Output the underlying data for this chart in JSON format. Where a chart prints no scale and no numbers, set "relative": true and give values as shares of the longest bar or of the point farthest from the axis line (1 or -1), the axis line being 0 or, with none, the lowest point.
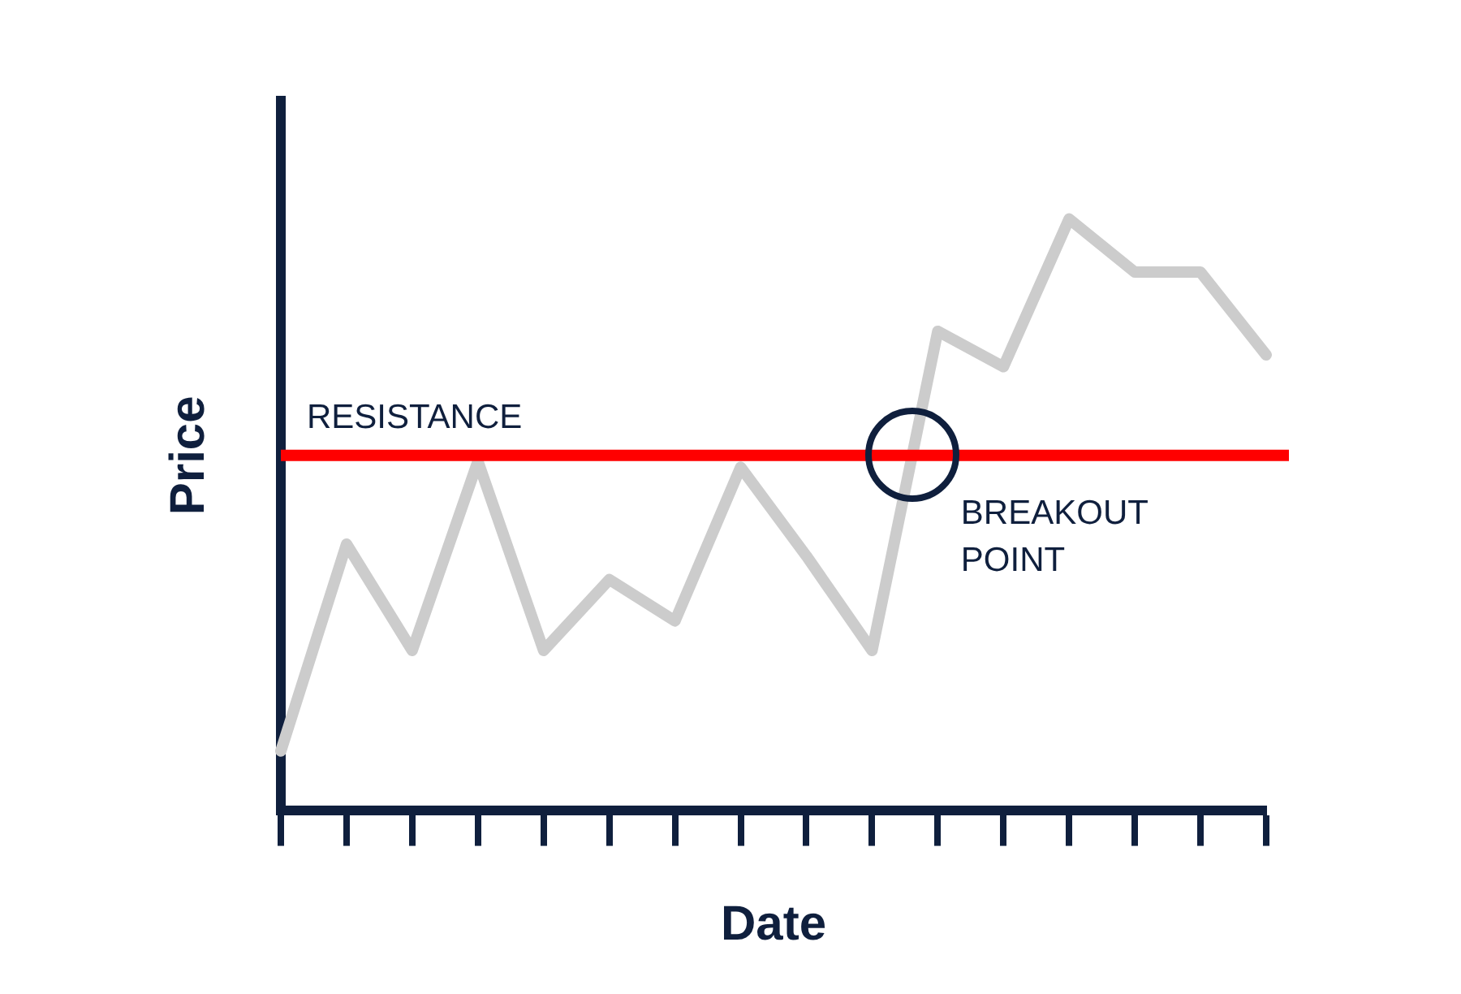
{
  "chart_data": {
    "type": "line",
    "xlabel": "Date",
    "ylabel": "Price",
    "relative": true,
    "categories": [
      null,
      null,
      null,
      null,
      null,
      null,
      null,
      null,
      null,
      null,
      null,
      null,
      null,
      null,
      null,
      null
    ],
    "series": [
      {
        "color": "#cccccc",
        "values": [
          0.1,
          0.45,
          0.27,
          0.59,
          0.27,
          0.39,
          0.32,
          0.58,
          0.43,
          0.27,
          0.81,
          0.75,
          1,
          0.91,
          0.91,
          0.77
        ]
      }
    ],
    "ref_lines": [
      {
        "axis": "y",
        "value": 0.6,
        "label": "RESISTANCE",
        "color": "#ff0000"
      }
    ],
    "annotations": [
      {
        "text": "BREAKOUT POINT",
        "y": 0.6
      }
    ],
    "grid": false,
    "legend": false,
    "marker": "none",
    "line_style": "solid"
  }
}
